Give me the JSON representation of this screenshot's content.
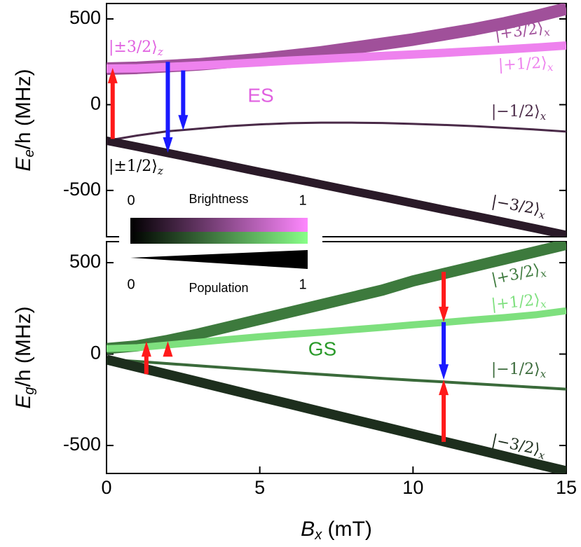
{
  "chart_data": [
    {
      "type": "line",
      "label": "ES",
      "label_color": "#e060e0",
      "ylabel": {
        "symbol": "E",
        "sub": "e",
        "rest": "/h (MHz)"
      },
      "xlim": [
        0,
        15
      ],
      "ylim": [
        -770,
        590
      ],
      "yticks": [
        -500,
        0,
        500
      ],
      "x": [
        0,
        1,
        2,
        3,
        4,
        5,
        6,
        7,
        8,
        9,
        10,
        11,
        12,
        13,
        14,
        15
      ],
      "series": [
        {
          "name": "|+3/2⟩",
          "subscript": "x",
          "color": "#a0509a",
          "values": [
            210,
            215,
            225,
            235,
            250,
            265,
            285,
            305,
            330,
            355,
            380,
            410,
            440,
            475,
            515,
            560
          ]
        },
        {
          "name": "|+1/2⟩",
          "subscript": "x",
          "color": "#ee82ee",
          "values": [
            210,
            212,
            220,
            228,
            237,
            247,
            257,
            266,
            275,
            284,
            293,
            302,
            312,
            322,
            333,
            345
          ]
        },
        {
          "name": "|−1/2⟩",
          "subscript": "x",
          "color": "#4a2a48",
          "values": [
            -210,
            -180,
            -155,
            -140,
            -125,
            -115,
            -108,
            -105,
            -105,
            -107,
            -112,
            -118,
            -125,
            -135,
            -145,
            -157
          ]
        },
        {
          "name": "|−3/2⟩",
          "subscript": "x",
          "color": "#2a1a28",
          "values": [
            -210,
            -245,
            -282,
            -318,
            -355,
            -392,
            -428,
            -465,
            -502,
            -538,
            -575,
            -612,
            -648,
            -685,
            -722,
            -760
          ]
        }
      ],
      "states": [
        {
          "name": "|±3/2⟩",
          "subscript": "z"
        },
        {
          "name": "|±1/2⟩",
          "subscript": "z"
        }
      ],
      "arrows": [
        {
          "x": 0.2,
          "from": -200,
          "to": 215,
          "color": "#ff1a1a"
        },
        {
          "x": 2.0,
          "from": 250,
          "to": -280,
          "color": "#1a1aff"
        },
        {
          "x": 2.5,
          "from": 200,
          "to": -150,
          "color": "#1a1aff"
        }
      ],
      "legend": {
        "brightness": "Brightness",
        "population": "Population",
        "low": "0",
        "high": "1"
      }
    },
    {
      "type": "line",
      "label": "GS",
      "label_color": "#2a9a2a",
      "ylabel": {
        "symbol": "E",
        "sub": "g",
        "rest": "/h (MHz)"
      },
      "xlabel": {
        "symbol": "B",
        "sub": "x",
        "rest": " (mT)"
      },
      "xlim": [
        0,
        15
      ],
      "xticks": [
        0,
        5,
        10,
        15
      ],
      "ylim": [
        -653,
        615
      ],
      "yticks": [
        -500,
        0,
        500
      ],
      "x": [
        0,
        1,
        2,
        3,
        4,
        5,
        6,
        7,
        8,
        9,
        10,
        11,
        12,
        13,
        14,
        15
      ],
      "series": [
        {
          "name": "|+3/2⟩",
          "subscript": "x",
          "color": "#3d7a3d",
          "values": [
            30,
            45,
            75,
            110,
            150,
            190,
            230,
            270,
            310,
            350,
            400,
            440,
            480,
            520,
            560,
            600
          ]
        },
        {
          "name": "|+1/2⟩",
          "subscript": "x",
          "color": "#7ee07e",
          "values": [
            30,
            35,
            50,
            65,
            80,
            95,
            108,
            120,
            133,
            146,
            160,
            173,
            187,
            200,
            215,
            237
          ]
        },
        {
          "name": "|−1/2⟩",
          "subscript": "x",
          "color": "#3a6a3a",
          "values": [
            -30,
            -40,
            -52,
            -64,
            -76,
            -88,
            -100,
            -111,
            -122,
            -133,
            -143,
            -152,
            -162,
            -172,
            -182,
            -192
          ]
        },
        {
          "name": "|−3/2⟩",
          "subscript": "x",
          "color": "#1d2e1d",
          "values": [
            -30,
            -71,
            -111,
            -152,
            -193,
            -234,
            -274,
            -315,
            -356,
            -396,
            -437,
            -478,
            -518,
            -559,
            -600,
            -640
          ]
        }
      ],
      "arrows": [
        {
          "x": 1.3,
          "from": -110,
          "to": 70,
          "color": "#ff1a1a"
        },
        {
          "x": 2.0,
          "from": 0,
          "to": 70,
          "color": "#ff1a1a"
        },
        {
          "x": 11,
          "from": 450,
          "to": 175,
          "color": "#ff1a1a"
        },
        {
          "x": 11,
          "from": 175,
          "to": -140,
          "color": "#1a1aff"
        },
        {
          "x": 11,
          "from": -480,
          "to": -140,
          "color": "#ff1a1a"
        }
      ]
    }
  ]
}
